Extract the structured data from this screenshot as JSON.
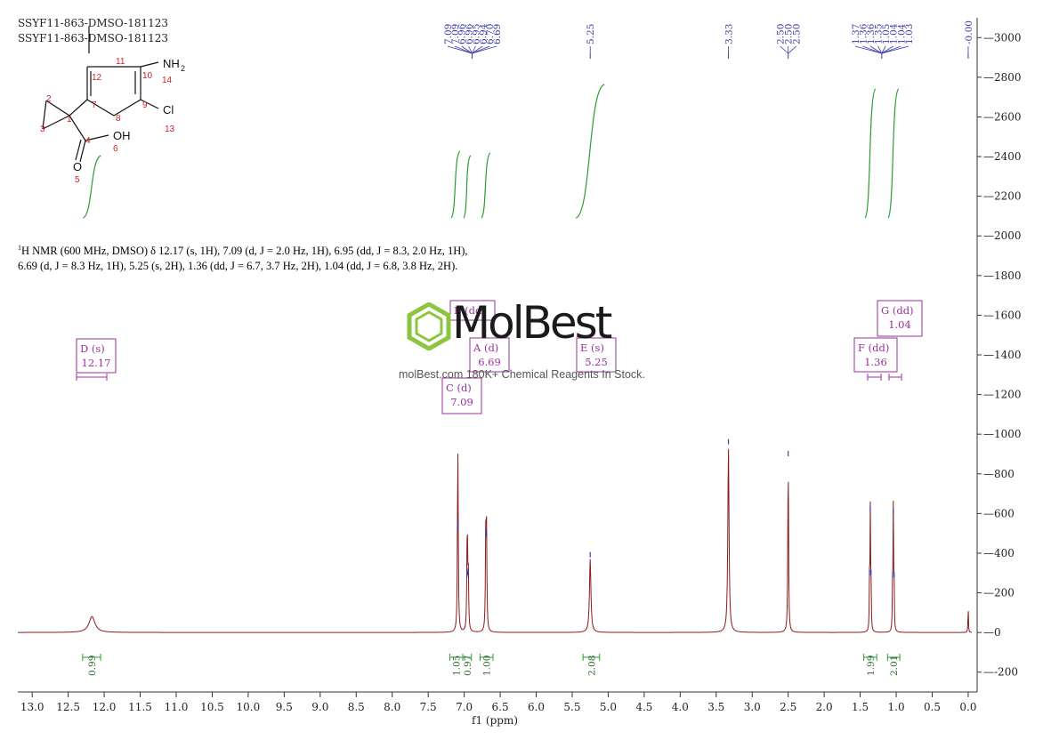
{
  "header": {
    "line1": "SSYF11-863-DMSO-181123",
    "line2": "SSYF11-863-DMSO-181123"
  },
  "nmr": {
    "sup": "1",
    "line1": "H NMR (600 MHz, DMSO) δ 12.17 (s, 1H), 7.09 (d, J = 2.0 Hz, 1H), 6.95 (dd, J = 8.3, 2.0 Hz, 1H),",
    "line2": "6.69 (d, J = 8.3 Hz, 1H), 5.25 (s, 2H), 1.36 (dd, J = 6.7, 3.7 Hz, 2H), 1.04 (dd, J = 6.8, 3.8 Hz, 2H)."
  },
  "watermark": {
    "name": "MolBest",
    "sub": "molBest.com 180K+ Chemical Reagents In Stock."
  },
  "colors": {
    "spectrum": "#8b1a1a",
    "integral": "#2e9b2e",
    "peak_marker": "#3a3aa8",
    "multiplet_box": "#9a2f9a",
    "axis": "#333333"
  },
  "chart_data": {
    "type": "line",
    "xlabel": "f1 (ppm)",
    "xlim": [
      13.2,
      -0.05
    ],
    "ylim": [
      -300,
      3100
    ],
    "x_ticks": [
      "13.0",
      "12.5",
      "12.0",
      "11.5",
      "11.0",
      "10.5",
      "10.0",
      "9.5",
      "9.0",
      "8.5",
      "8.0",
      "7.5",
      "7.0",
      "6.5",
      "6.0",
      "5.5",
      "5.0",
      "4.5",
      "4.0",
      "3.5",
      "3.0",
      "2.5",
      "2.0",
      "1.5",
      "1.0",
      "0.5",
      "0.0"
    ],
    "y_ticks": [
      "-200",
      "0",
      "200",
      "400",
      "600",
      "800",
      "1000",
      "1200",
      "1400",
      "1600",
      "1800",
      "2000",
      "2200",
      "2400",
      "2600",
      "2800",
      "3000"
    ],
    "peaks": [
      {
        "ppm": 12.17,
        "height": 80,
        "width": 0.05
      },
      {
        "ppm": 7.09,
        "height": 520,
        "width": 0.006
      },
      {
        "ppm": 7.086,
        "height": 500,
        "width": 0.006
      },
      {
        "ppm": 6.96,
        "height": 290,
        "width": 0.006
      },
      {
        "ppm": 6.955,
        "height": 280,
        "width": 0.006
      },
      {
        "ppm": 6.943,
        "height": 270,
        "width": 0.006
      },
      {
        "ppm": 6.7,
        "height": 490,
        "width": 0.006
      },
      {
        "ppm": 6.69,
        "height": 470,
        "width": 0.006
      },
      {
        "ppm": 5.25,
        "height": 370,
        "width": 0.012
      },
      {
        "ppm": 3.33,
        "height": 940,
        "width": 0.01
      },
      {
        "ppm": 2.5,
        "height": 880,
        "width": 0.006
      },
      {
        "ppm": 1.37,
        "height": 280,
        "width": 0.004
      },
      {
        "ppm": 1.36,
        "height": 600,
        "width": 0.004
      },
      {
        "ppm": 1.35,
        "height": 280,
        "width": 0.004
      },
      {
        "ppm": 1.05,
        "height": 270,
        "width": 0.004
      },
      {
        "ppm": 1.04,
        "height": 590,
        "width": 0.004
      },
      {
        "ppm": 1.03,
        "height": 270,
        "width": 0.004
      },
      {
        "ppm": 0.0,
        "height": 130,
        "width": 0.004
      }
    ],
    "peak_labels": [
      "7.09",
      "7.09",
      "6.96",
      "6.96",
      "6.95",
      "6.94",
      "6.70",
      "6.69",
      "5.25",
      "3.33",
      "2.50",
      "2.50",
      "2.50",
      "1.37",
      "1.36",
      "1.36",
      "1.35",
      "1.05",
      "1.04",
      "1.04",
      "1.03",
      "-0.00"
    ],
    "integrals": [
      {
        "from": 12.3,
        "to": 12.05,
        "value": "0.99"
      },
      {
        "from": 7.2,
        "to": 7.02,
        "value": "1.05"
      },
      {
        "from": 7.02,
        "to": 6.9,
        "value": "0.97"
      },
      {
        "from": 6.78,
        "to": 6.6,
        "value": "1.00"
      },
      {
        "from": 5.35,
        "to": 5.12,
        "value": "2.08"
      },
      {
        "from": 1.45,
        "to": 1.27,
        "value": "1.99"
      },
      {
        "from": 1.12,
        "to": 0.95,
        "value": "2.01"
      }
    ],
    "multiplets": [
      {
        "label": "D (s)",
        "ppm_label": "12.17",
        "ppm": 12.17
      },
      {
        "label": "B (dd)",
        "ppm_label": "6.95",
        "ppm": 6.95
      },
      {
        "label": "A (d)",
        "ppm_label": "6.69",
        "ppm": 6.69
      },
      {
        "label": "C (d)",
        "ppm_label": "7.09",
        "ppm": 7.09
      },
      {
        "label": "E (s)",
        "ppm_label": "5.25",
        "ppm": 5.25
      },
      {
        "label": "F (dd)",
        "ppm_label": "1.36",
        "ppm": 1.36
      },
      {
        "label": "G (dd)",
        "ppm_label": "1.04",
        "ppm": 1.04
      }
    ],
    "structure_labels": [
      "NH",
      "2",
      "14",
      "Cl",
      "13",
      "OH",
      "6",
      "O",
      "5",
      "1",
      "2",
      "3",
      "4",
      "7",
      "8",
      "9",
      "10",
      "11",
      "12"
    ]
  }
}
